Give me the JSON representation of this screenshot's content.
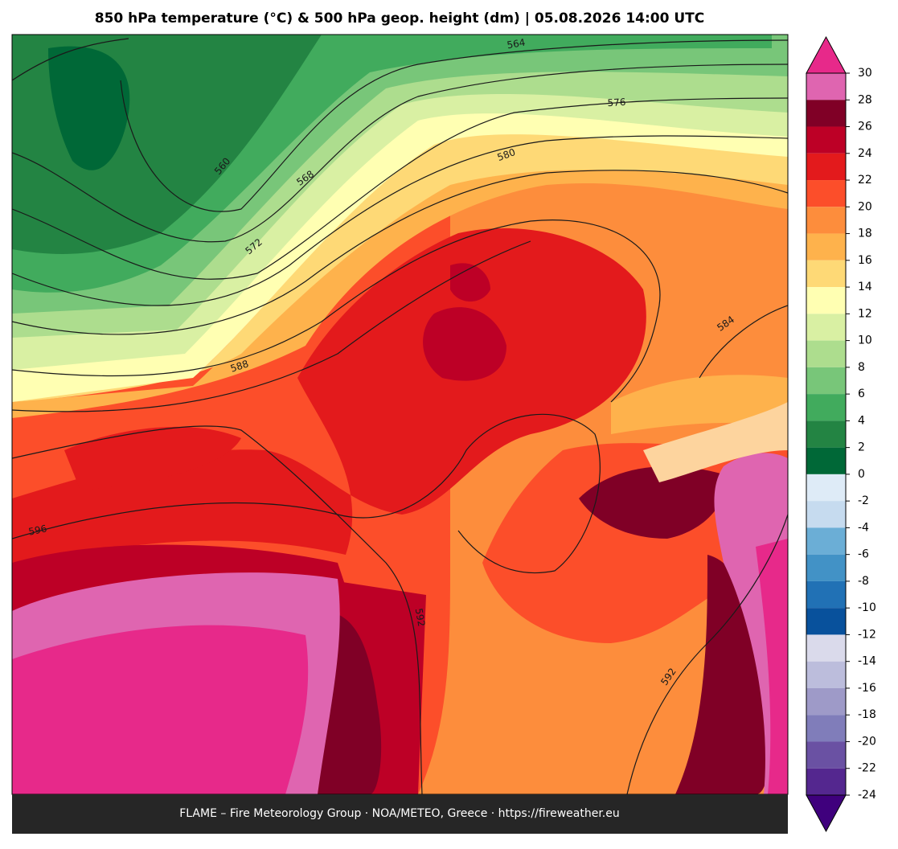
{
  "title": "850 hPa temperature (°C) & 500 hPa geop. height (dm)  |  05.08.2026 14:00 UTC",
  "colorbar": {
    "lim": [
      -24,
      30
    ],
    "ticks": [
      30,
      28,
      26,
      24,
      22,
      20,
      18,
      16,
      14,
      12,
      10,
      8,
      6,
      4,
      2,
      0,
      -2,
      -4,
      -6,
      -8,
      -10,
      -12,
      -14,
      -16,
      -18,
      -20,
      -22,
      -24
    ],
    "colors": [
      "#df65b0",
      "#800026",
      "#bd0026",
      "#e31a1c",
      "#fc4e2a",
      "#fd8d3c",
      "#feb24c",
      "#fed976",
      "#ffffb2",
      "#d9f0a3",
      "#addd8e",
      "#78c679",
      "#41ab5d",
      "#238443",
      "#006837",
      "#deebf7",
      "#c6dbef",
      "#6baed6",
      "#4292c6",
      "#2171b5",
      "#08519c",
      "#dadaeb",
      "#bcbddc",
      "#9e9ac8",
      "#807dba",
      "#6a51a3",
      "#54278f"
    ],
    "extend_max_color": "#e7298a",
    "extend_min_color": "#3f007d"
  },
  "contour_labels": [
    564,
    576,
    580,
    568,
    560,
    572,
    588,
    584,
    596,
    592,
    592
  ],
  "footer": "FLAME – Fire Meteorology Group · NOA/METEO, Greece · https://fireweather.eu"
}
